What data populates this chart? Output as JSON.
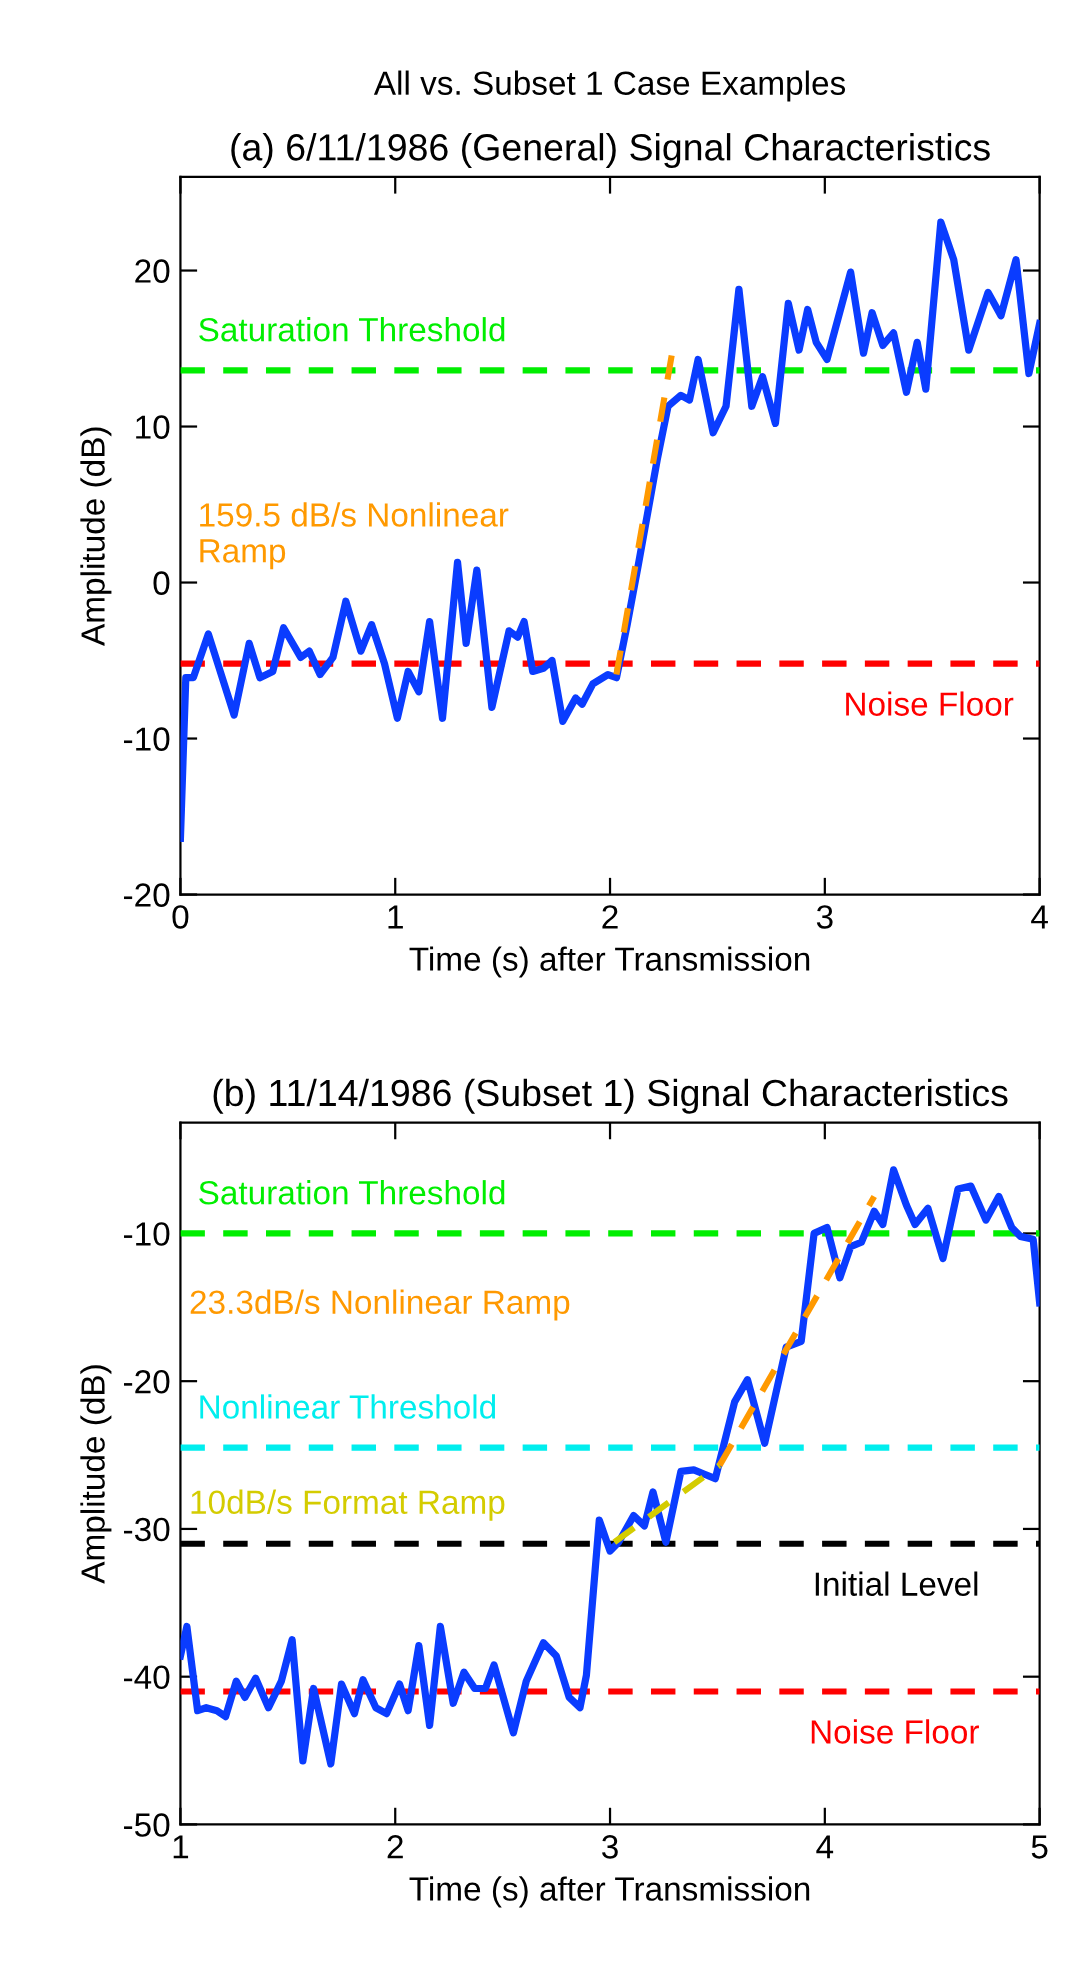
{
  "chart_data": [
    {
      "type": "line",
      "title": "All vs. Subset 1 Case Examples",
      "subtitle": "(a) 6/11/1986 (General) Signal Characteristics",
      "xlabel": "Time (s) after Transmission",
      "ylabel": "Amplitude (dB)",
      "xlim": [
        0,
        4
      ],
      "ylim": [
        -20,
        26
      ],
      "xticks": [
        0,
        1,
        2,
        3,
        4
      ],
      "yticks": [
        -20,
        -10,
        0,
        10,
        20
      ],
      "grid": false,
      "legend": false,
      "series": [
        {
          "color": "#0a3cff",
          "line_style": "solid",
          "x": [
            0,
            0.025,
            0.06,
            0.13,
            0.25,
            0.32,
            0.37,
            0.43,
            0.48,
            0.56,
            0.6,
            0.65,
            0.71,
            0.77,
            0.84,
            0.89,
            0.95,
            1.01,
            1.06,
            1.11,
            1.16,
            1.22,
            1.29,
            1.33,
            1.38,
            1.45,
            1.53,
            1.57,
            1.6,
            1.64,
            1.69,
            1.73,
            1.78,
            1.84,
            1.87,
            1.92,
            1.99,
            2.03,
            2.08,
            2.13,
            2.22,
            2.27,
            2.33,
            2.37,
            2.41,
            2.48,
            2.54,
            2.6,
            2.66,
            2.71,
            2.77,
            2.83,
            2.88,
            2.92,
            2.96,
            3.01,
            3.12,
            3.18,
            3.22,
            3.27,
            3.32,
            3.38,
            3.43,
            3.47,
            3.54,
            3.6,
            3.67,
            3.76,
            3.82,
            3.89,
            3.95,
            4.0
          ],
          "values": [
            -16.4,
            -6.1,
            -6.1,
            -3.3,
            -8.5,
            -3.9,
            -6.1,
            -5.7,
            -2.9,
            -4.8,
            -4.4,
            -5.9,
            -4.8,
            -1.2,
            -4.4,
            -2.7,
            -5.2,
            -8.7,
            -5.7,
            -7.0,
            -2.5,
            -8.7,
            1.3,
            -3.9,
            0.8,
            -8.0,
            -3.1,
            -3.5,
            -2.5,
            -5.7,
            -5.5,
            -5.0,
            -8.9,
            -7.4,
            -7.8,
            -6.5,
            -5.9,
            -6.1,
            -2.7,
            1.0,
            7.9,
            11.3,
            12.0,
            11.7,
            14.3,
            9.6,
            11.3,
            18.8,
            11.3,
            13.2,
            10.2,
            17.9,
            14.9,
            17.5,
            15.4,
            14.3,
            19.9,
            14.7,
            17.3,
            15.2,
            16.0,
            12.2,
            15.4,
            12.4,
            23.1,
            20.7,
            14.9,
            18.6,
            17.1,
            20.7,
            13.4,
            16.6
          ]
        },
        {
          "name": "159.5 dB/s Nonlinear Ramp",
          "color": "#ff9900",
          "line_style": "dashed",
          "x": [
            2.03,
            2.29
          ],
          "values": [
            -5.9,
            14.8
          ]
        }
      ],
      "ref_lines": [
        {
          "axis": "y",
          "value": 13.6,
          "label": "Saturation Threshold",
          "color": "#00ee00",
          "line_style": "dashed"
        },
        {
          "axis": "y",
          "value": -5.2,
          "label": "Noise Floor",
          "color": "#ff0000",
          "line_style": "dashed"
        }
      ]
    },
    {
      "type": "line",
      "title": "(b) 11/14/1986 (Subset 1) Signal Characteristics",
      "xlabel": "Time (s) after Transmission",
      "ylabel": "Amplitude (dB)",
      "xlim": [
        1,
        5
      ],
      "ylim": [
        -50,
        -2.5
      ],
      "xticks": [
        1,
        2,
        3,
        4,
        5
      ],
      "yticks": [
        -50,
        -40,
        -30,
        -20,
        -10
      ],
      "grid": false,
      "legend": false,
      "series": [
        {
          "color": "#0a3cff",
          "line_style": "solid",
          "x": [
            1.0,
            1.03,
            1.08,
            1.12,
            1.17,
            1.21,
            1.26,
            1.3,
            1.35,
            1.41,
            1.47,
            1.52,
            1.57,
            1.62,
            1.7,
            1.75,
            1.81,
            1.85,
            1.91,
            1.96,
            2.02,
            2.06,
            2.11,
            2.16,
            2.21,
            2.27,
            2.32,
            2.37,
            2.42,
            2.46,
            2.55,
            2.61,
            2.69,
            2.75,
            2.81,
            2.86,
            2.89,
            2.95,
            3.0,
            3.04,
            3.11,
            3.16,
            3.2,
            3.26,
            3.33,
            3.39,
            3.44,
            3.49,
            3.58,
            3.64,
            3.72,
            3.82,
            3.89,
            3.95,
            4.01,
            4.07,
            4.12,
            4.17,
            4.23,
            4.27,
            4.32,
            4.38,
            4.42,
            4.48,
            4.55,
            4.62,
            4.68,
            4.75,
            4.81,
            4.87,
            4.91,
            4.97,
            5.0
          ],
          "values": [
            -38.6,
            -36.6,
            -42.3,
            -42.1,
            -42.3,
            -42.7,
            -40.3,
            -41.4,
            -40.1,
            -42.1,
            -40.3,
            -37.5,
            -45.7,
            -40.8,
            -45.9,
            -40.5,
            -42.5,
            -40.2,
            -42.1,
            -42.5,
            -40.5,
            -42.3,
            -37.9,
            -43.3,
            -36.6,
            -41.8,
            -39.7,
            -40.8,
            -40.8,
            -39.2,
            -43.8,
            -40.3,
            -37.7,
            -38.6,
            -41.4,
            -42.1,
            -39.9,
            -29.4,
            -31.5,
            -30.9,
            -29.1,
            -29.8,
            -27.5,
            -30.9,
            -26.1,
            -26.0,
            -26.3,
            -26.6,
            -21.4,
            -19.9,
            -24.2,
            -17.7,
            -17.3,
            -10.0,
            -9.6,
            -13.0,
            -10.9,
            -10.6,
            -8.5,
            -9.4,
            -5.7,
            -8.1,
            -9.4,
            -8.3,
            -11.7,
            -7.0,
            -6.8,
            -9.1,
            -7.5,
            -9.6,
            -10.2,
            -10.4,
            -14.7
          ]
        },
        {
          "name": "23.3dB/s Nonlinear Ramp",
          "color": "#ff9900",
          "line_style": "dashed",
          "x": [
            3.51,
            4.23
          ],
          "values": [
            -25.7,
            -7.5
          ]
        },
        {
          "name": "10dB/s Format Ramp",
          "color": "#d4cc00",
          "line_style": "dashed",
          "x": [
            3.02,
            3.51
          ],
          "values": [
            -30.9,
            -25.7
          ]
        }
      ],
      "ref_lines": [
        {
          "axis": "y",
          "value": -10,
          "label": "Saturation Threshold",
          "color": "#00ee00",
          "line_style": "dashed"
        },
        {
          "axis": "y",
          "value": -24.5,
          "label": "Nonlinear Threshold",
          "color": "#00eeee",
          "line_style": "dashed"
        },
        {
          "axis": "y",
          "value": -31,
          "label": "Initial Level",
          "color": "#000000",
          "line_style": "dashed"
        },
        {
          "axis": "y",
          "value": -41,
          "label": "Noise Floor",
          "color": "#ff0000",
          "line_style": "dashed"
        }
      ]
    }
  ]
}
